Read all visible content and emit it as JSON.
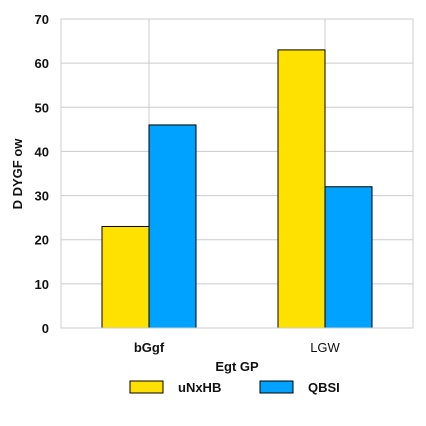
{
  "chart_data": {
    "type": "bar",
    "categories": [
      "bGgf",
      "LGW"
    ],
    "series": [
      {
        "name": "uNxHB",
        "values": [
          23,
          63
        ],
        "color": "#ffe100"
      },
      {
        "name": "QBSI",
        "values": [
          46,
          32
        ],
        "color": "#00a2ff"
      }
    ],
    "xlabel": "Egt GP",
    "ylabel": "D DYGF ow",
    "ylim": [
      0,
      70
    ],
    "yticks": [
      0,
      10,
      20,
      30,
      40,
      50,
      60,
      70
    ],
    "grid": true,
    "legend_position": "bottom"
  }
}
